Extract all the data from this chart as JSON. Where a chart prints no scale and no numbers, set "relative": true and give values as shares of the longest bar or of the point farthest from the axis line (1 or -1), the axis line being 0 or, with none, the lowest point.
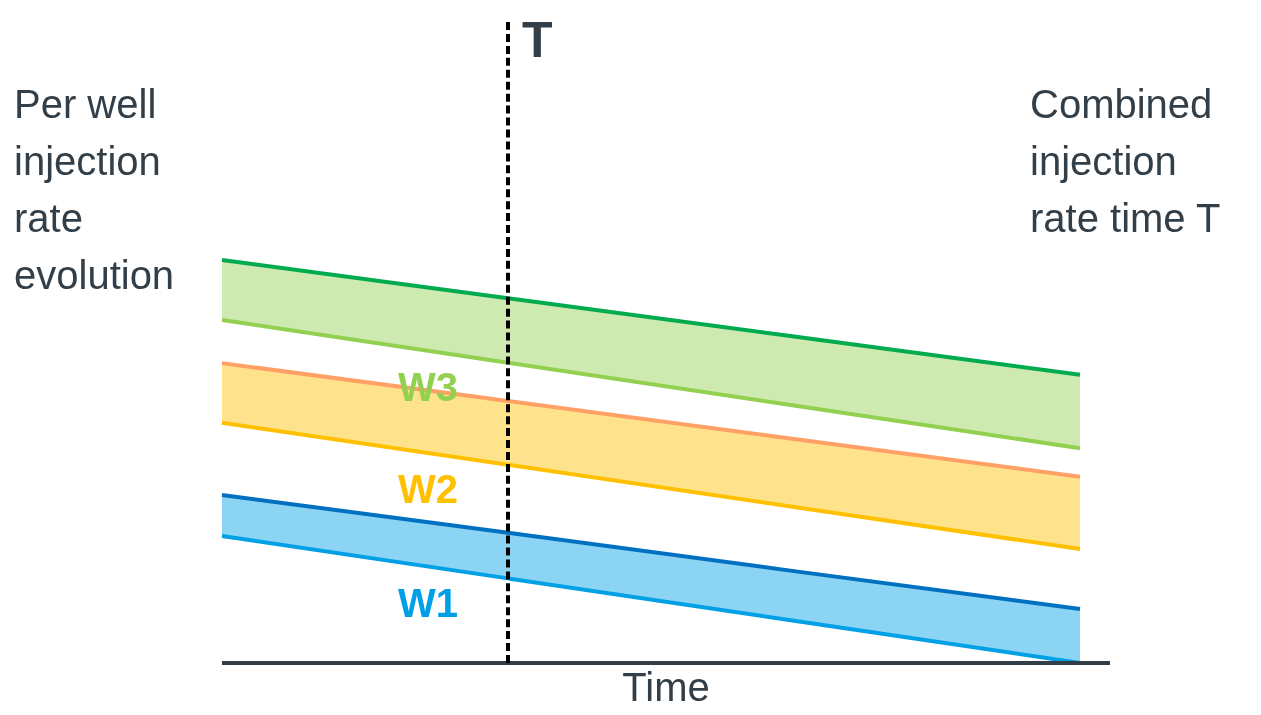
{
  "chart_data": {
    "type": "line",
    "relative": true,
    "xlabel": "Time",
    "ylabel": "Per well injection rate evolution",
    "annotations": [
      "Combined injection rate time T",
      "T"
    ],
    "categories": [
      null,
      null,
      null,
      null
    ],
    "marker": "none",
    "line_style": "solid",
    "series": [
      {
        "color": "#00aa4f",
        "values": [
          1.0,
          0.905,
          0.81,
          0.715
        ]
      },
      {
        "name": "W3",
        "color": "#92d050",
        "values": [
          0.851,
          0.745,
          0.639,
          0.533
        ],
        "lower": [
          0.851,
          0.745,
          0.639,
          0.533
        ],
        "upper": [
          1.0,
          0.905,
          0.81,
          0.715
        ]
      },
      {
        "color": "#ffa066",
        "values": [
          0.744,
          0.65,
          0.556,
          0.462
        ]
      },
      {
        "name": "W2",
        "color": "#ffc000",
        "values": [
          0.596,
          0.492,
          0.387,
          0.283
        ],
        "lower": [
          0.596,
          0.492,
          0.387,
          0.283
        ],
        "upper": [
          0.744,
          0.65,
          0.556,
          0.462
        ]
      },
      {
        "color": "#0070c0",
        "values": [
          0.417,
          0.323,
          0.228,
          0.134
        ]
      },
      {
        "name": "W1",
        "color": "#00a0e6",
        "values": [
          0.315,
          0.21,
          0.105,
          0
        ],
        "lower": [
          0.315,
          0.21,
          0.105,
          0
        ],
        "upper": [
          0.417,
          0.323,
          0.228,
          0.134
        ]
      }
    ]
  }
}
